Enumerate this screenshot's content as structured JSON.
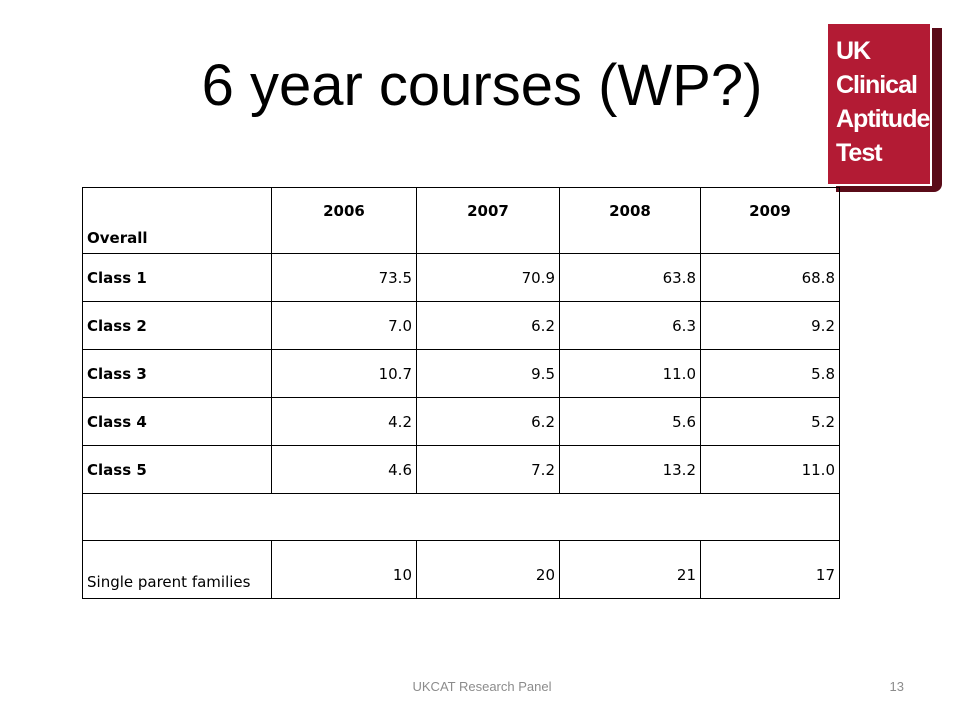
{
  "slide": {
    "title": "6 year courses (WP?)",
    "logo": [
      "UK",
      "Clinical",
      "Aptitude",
      "Test"
    ],
    "table": {
      "header": [
        "Overall",
        "2006",
        "2007",
        "2008",
        "2009"
      ],
      "rows": [
        [
          "Class 1",
          "73.5",
          "70.9",
          "63.8",
          "68.8"
        ],
        [
          "Class 2",
          "7.0",
          "6.2",
          "6.3",
          "9.2"
        ],
        [
          "Class 3",
          "10.7",
          "9.5",
          "11.0",
          "5.8"
        ],
        [
          "Class 4",
          "4.2",
          "6.2",
          "5.6",
          "5.2"
        ],
        [
          "Class 5",
          "4.6",
          "7.2",
          "13.2",
          "11.0"
        ]
      ],
      "extra_rows": [
        [
          "Single parent families",
          "10",
          "20",
          "21",
          "17"
        ]
      ]
    },
    "footer": "UKCAT Research Panel",
    "page_number": "13"
  }
}
